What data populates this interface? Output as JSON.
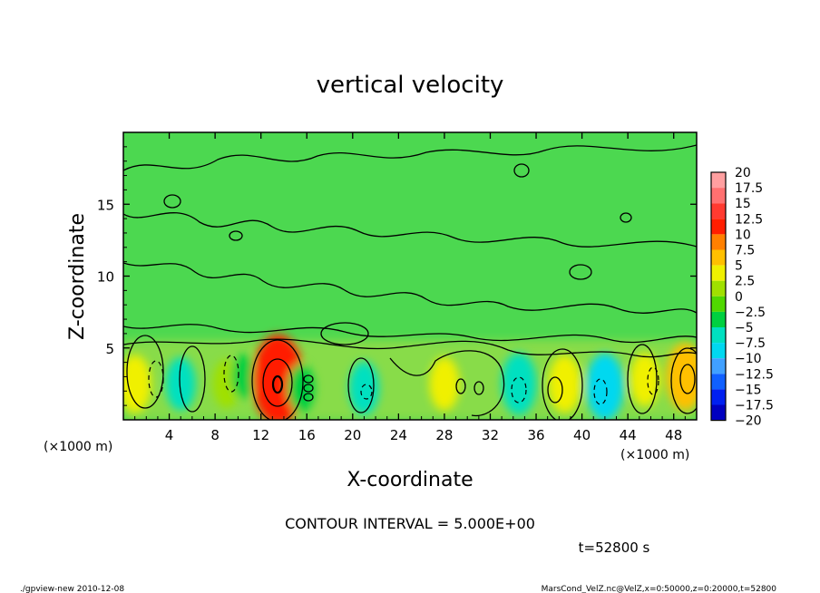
{
  "chart_data": {
    "type": "heatmap",
    "title": "vertical velocity",
    "xlabel": "X-coordinate",
    "ylabel": "Z-coordinate",
    "x_unit_label": "(×1000 m)",
    "y_unit_label": "(×1000 m)",
    "xlim": [
      0,
      50
    ],
    "ylim": [
      0,
      20
    ],
    "x_ticks": [
      "4",
      "8",
      "12",
      "16",
      "20",
      "24",
      "28",
      "32",
      "36",
      "40",
      "44",
      "48"
    ],
    "x_tick_values": [
      4,
      8,
      12,
      16,
      20,
      24,
      28,
      32,
      36,
      40,
      44,
      48
    ],
    "y_ticks": [
      "5",
      "10",
      "15"
    ],
    "y_tick_values": [
      5,
      10,
      15
    ],
    "contour_interval_text": "CONTOUR INTERVAL = 5.000E+00",
    "time_text": "t=52800 s",
    "colorbar": {
      "labels": [
        "20",
        "17.5",
        "15",
        "12.5",
        "10",
        "7.5",
        "5",
        "2.5",
        "0",
        "−2.5",
        "−5",
        "−7.5",
        "−10",
        "−12.5",
        "−15",
        "−17.5",
        "−20"
      ],
      "colors": [
        "#ff9fa0",
        "#ff7070",
        "#ff3a30",
        "#ff1e00",
        "#ff8000",
        "#ffc000",
        "#f0f000",
        "#a0e000",
        "#50d800",
        "#00d040",
        "#00e0c0",
        "#00d8f0",
        "#40a0ff",
        "#1060ff",
        "#0020f0",
        "#0000c0",
        "#6020c0"
      ]
    },
    "cells": [
      {
        "x": 1,
        "z": 2.5,
        "w": 5
      },
      {
        "x": 5,
        "z": 2.5,
        "w": -4
      },
      {
        "x": 9,
        "z": 2.5,
        "w": 3
      },
      {
        "x": 10.5,
        "z": 3,
        "w": -2
      },
      {
        "x": 13.5,
        "z": 2.8,
        "w": 12
      },
      {
        "x": 15.5,
        "z": 2.2,
        "w": -3
      },
      {
        "x": 21,
        "z": 2.2,
        "w": -4
      },
      {
        "x": 28,
        "z": 2.5,
        "w": 4
      },
      {
        "x": 34.5,
        "z": 2.5,
        "w": -6
      },
      {
        "x": 38.5,
        "z": 2.5,
        "w": 5
      },
      {
        "x": 42,
        "z": 2.3,
        "w": -7
      },
      {
        "x": 45.5,
        "z": 2.8,
        "w": 4
      },
      {
        "x": 49,
        "z": 3,
        "w": 7
      }
    ]
  },
  "footer": {
    "left": "./gpview-new  2010-12-08",
    "right": "MarsCond_VelZ.nc@VelZ,x=0:50000,z=0:20000,t=52800"
  }
}
